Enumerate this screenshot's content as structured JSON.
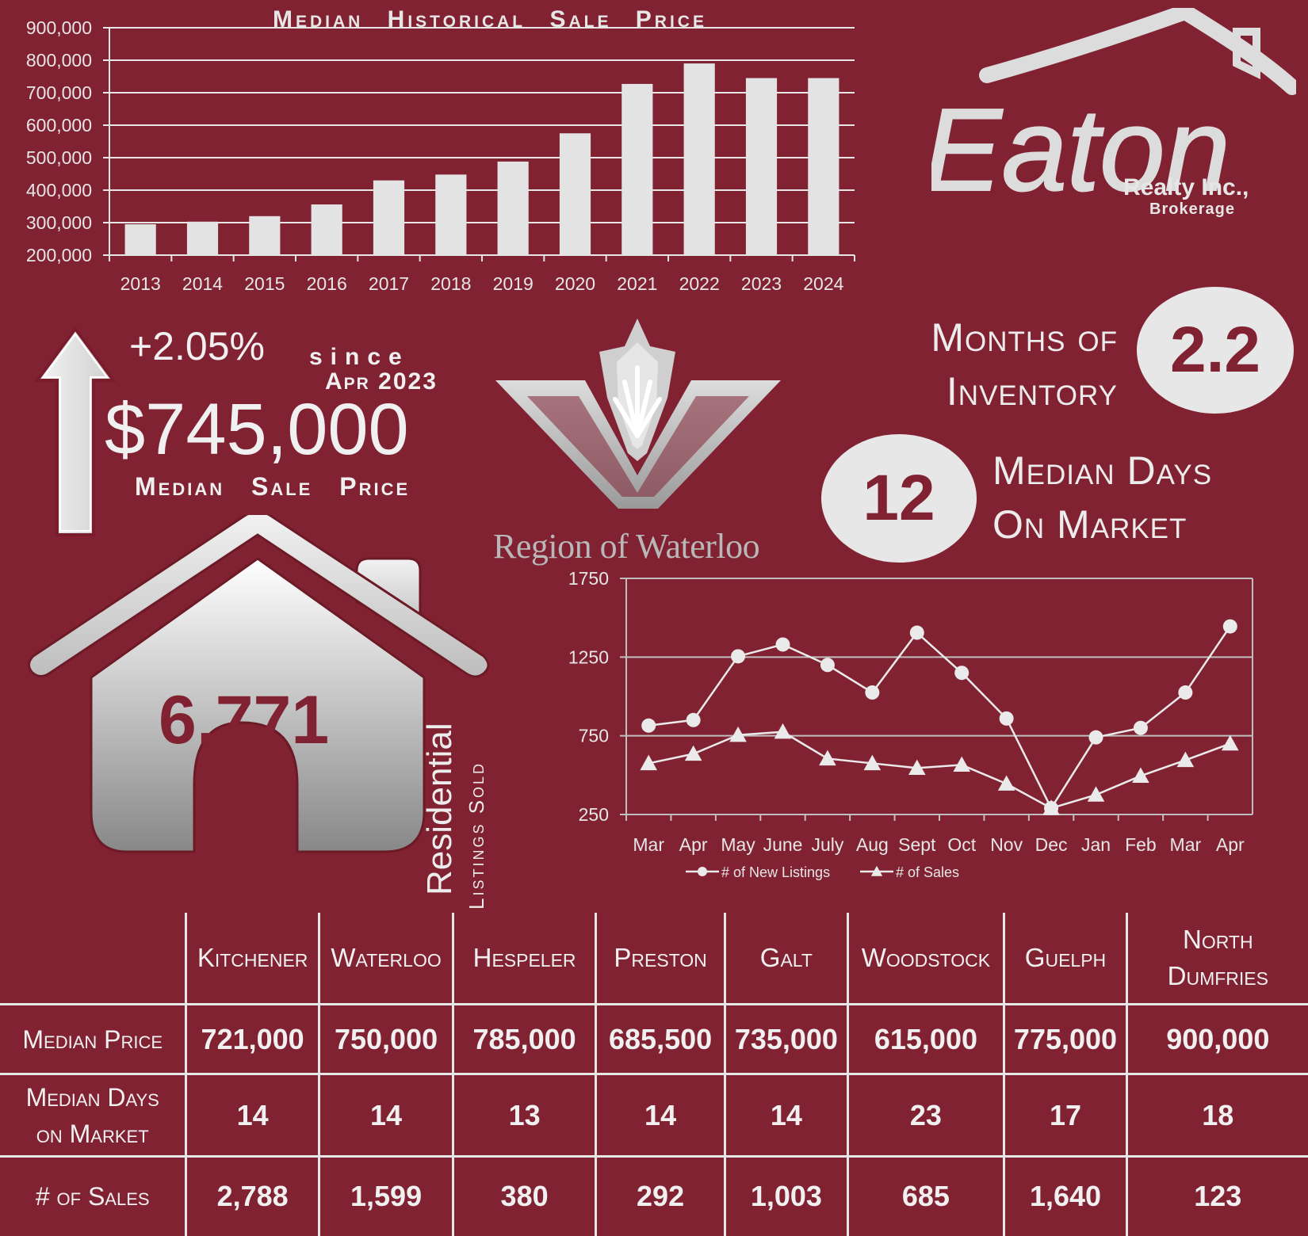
{
  "bar_chart_title": "Median Historical Sale Price",
  "chart_data": [
    {
      "type": "bar",
      "title": "Median Historical Sale Price",
      "categories": [
        "2013",
        "2014",
        "2015",
        "2016",
        "2017",
        "2018",
        "2019",
        "2020",
        "2021",
        "2022",
        "2023",
        "2024"
      ],
      "values": [
        295000,
        303000,
        320000,
        356000,
        430000,
        448000,
        488000,
        575000,
        727000,
        790000,
        745000,
        745000
      ],
      "ylim": [
        200000,
        900000
      ],
      "yticks": [
        "200,000",
        "300,000",
        "400,000",
        "500,000",
        "600,000",
        "700,000",
        "800,000",
        "900,000"
      ],
      "grid": true,
      "color": "#e3e3e3"
    },
    {
      "type": "line",
      "categories": [
        "Mar",
        "Apr",
        "May",
        "June",
        "July",
        "Aug",
        "Sept",
        "Oct",
        "Nov",
        "Dec",
        "Jan",
        "Feb",
        "Mar",
        "Apr"
      ],
      "series": [
        {
          "name": "# of New Listings",
          "marker": "circle",
          "values": [
            815,
            850,
            1255,
            1330,
            1200,
            1025,
            1405,
            1150,
            860,
            290,
            740,
            800,
            1025,
            1445
          ]
        },
        {
          "name": "# of Sales",
          "marker": "triangle",
          "values": [
            575,
            635,
            755,
            775,
            605,
            575,
            545,
            565,
            445,
            290,
            375,
            495,
            595,
            700
          ]
        }
      ],
      "ylim": [
        250,
        1750
      ],
      "yticks": [
        "250",
        "750",
        "1250",
        "1750"
      ],
      "grid": true,
      "legend": "bottom"
    }
  ],
  "logo": {
    "brand": "Eaton",
    "realty": "Realty Inc.,",
    "brokerage": "Brokerage"
  },
  "price_change": "+2.05%",
  "since_label": "since",
  "since_date": "Apr 2023",
  "median_price": "$745,000",
  "median_price_label": "Median Sale Price",
  "region_name": "Region of Waterloo",
  "months_inventory": {
    "label_line1": "Months of",
    "label_line2": "Inventory",
    "value": "2.2"
  },
  "median_dom": {
    "label_line1": "Median Days",
    "label_line2": "On Market",
    "value": "12"
  },
  "listings_sold": {
    "value": "6,771",
    "label_main": "Residential",
    "label_sub": "Listings Sold"
  },
  "table": {
    "columns": [
      "Kitchener",
      "Waterloo",
      "Hespeler",
      "Preston",
      "Galt",
      "Woodstock",
      "Guelph",
      "North Dumfries"
    ],
    "rows": [
      {
        "label": "Median Price",
        "values": [
          "721,000",
          "750,000",
          "785,000",
          "685,500",
          "735,000",
          "615,000",
          "775,000",
          "900,000"
        ]
      },
      {
        "label": "Median Days on Market",
        "values": [
          "14",
          "14",
          "13",
          "14",
          "14",
          "23",
          "17",
          "18"
        ]
      },
      {
        "label": "# of Sales",
        "values": [
          "2,788",
          "1,599",
          "380",
          "292",
          "1,003",
          "685",
          "1,640",
          "123"
        ]
      }
    ]
  },
  "colors": {
    "background": "#812233",
    "light": "#e7e7e7",
    "text_dark": "#812233"
  }
}
